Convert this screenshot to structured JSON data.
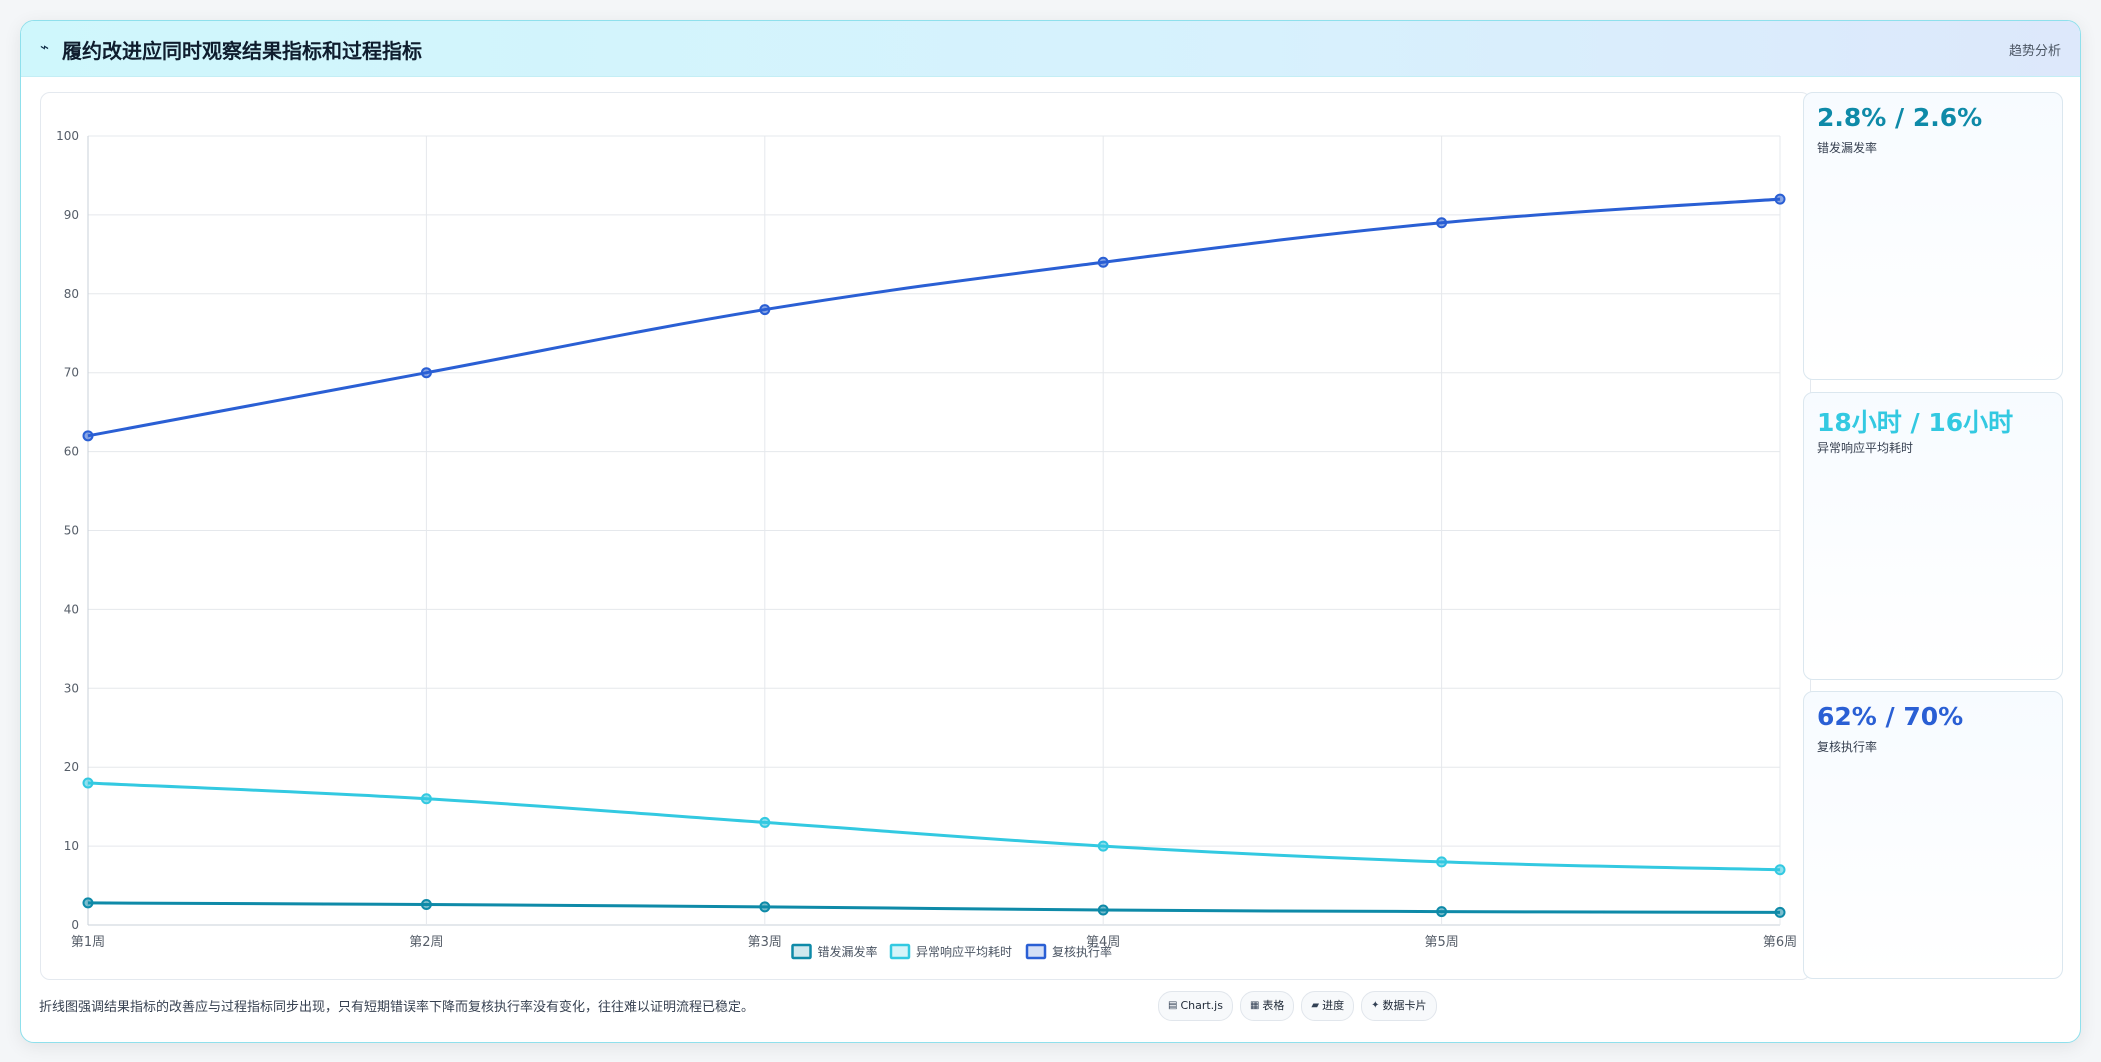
{
  "header": {
    "icon": "trend-icon",
    "title": "履约改进应同时观察结果指标和过程指标",
    "tag": "趋势分析"
  },
  "kpis": [
    {
      "value": "2.8% / 2.6%",
      "label": "错发漏发率",
      "color": "#0e8aa8"
    },
    {
      "value": "18小时 / 16小时",
      "label": "异常响应平均耗时",
      "color": "#33c9e1"
    },
    {
      "value": "62% / 70%",
      "label": "复核执行率",
      "color": "#2a5fd4"
    }
  ],
  "note": "折线图强调结果指标的改善应与过程指标同步出现，只有短期错误率下降而复核执行率没有变化，往往难以证明流程已稳定。",
  "chips": [
    {
      "icon": "chart-icon",
      "glyph": "▤",
      "label": "Chart.js"
    },
    {
      "icon": "table-icon",
      "glyph": "▦",
      "label": "表格"
    },
    {
      "icon": "progress-icon",
      "glyph": "▰",
      "label": "进度"
    },
    {
      "icon": "card-icon",
      "glyph": "✦",
      "label": "数据卡片"
    }
  ],
  "chart_data": {
    "type": "line",
    "categories": [
      "第1周",
      "第2周",
      "第3周",
      "第4周",
      "第5周",
      "第6周"
    ],
    "ylim": [
      0,
      100
    ],
    "yticks": [
      0,
      10,
      20,
      30,
      40,
      50,
      60,
      70,
      80,
      90,
      100
    ],
    "grid": true,
    "legend_position": "bottom",
    "series": [
      {
        "name": "错发漏发率",
        "color": "#0e8aa8",
        "values": [
          2.8,
          2.6,
          2.3,
          1.9,
          1.7,
          1.6
        ]
      },
      {
        "name": "异常响应平均耗时",
        "color": "#33c9e1",
        "values": [
          18,
          16,
          13,
          10,
          8,
          7
        ]
      },
      {
        "name": "复核执行率",
        "color": "#2a5fd4",
        "values": [
          62,
          70,
          78,
          84,
          89,
          92
        ]
      }
    ]
  }
}
